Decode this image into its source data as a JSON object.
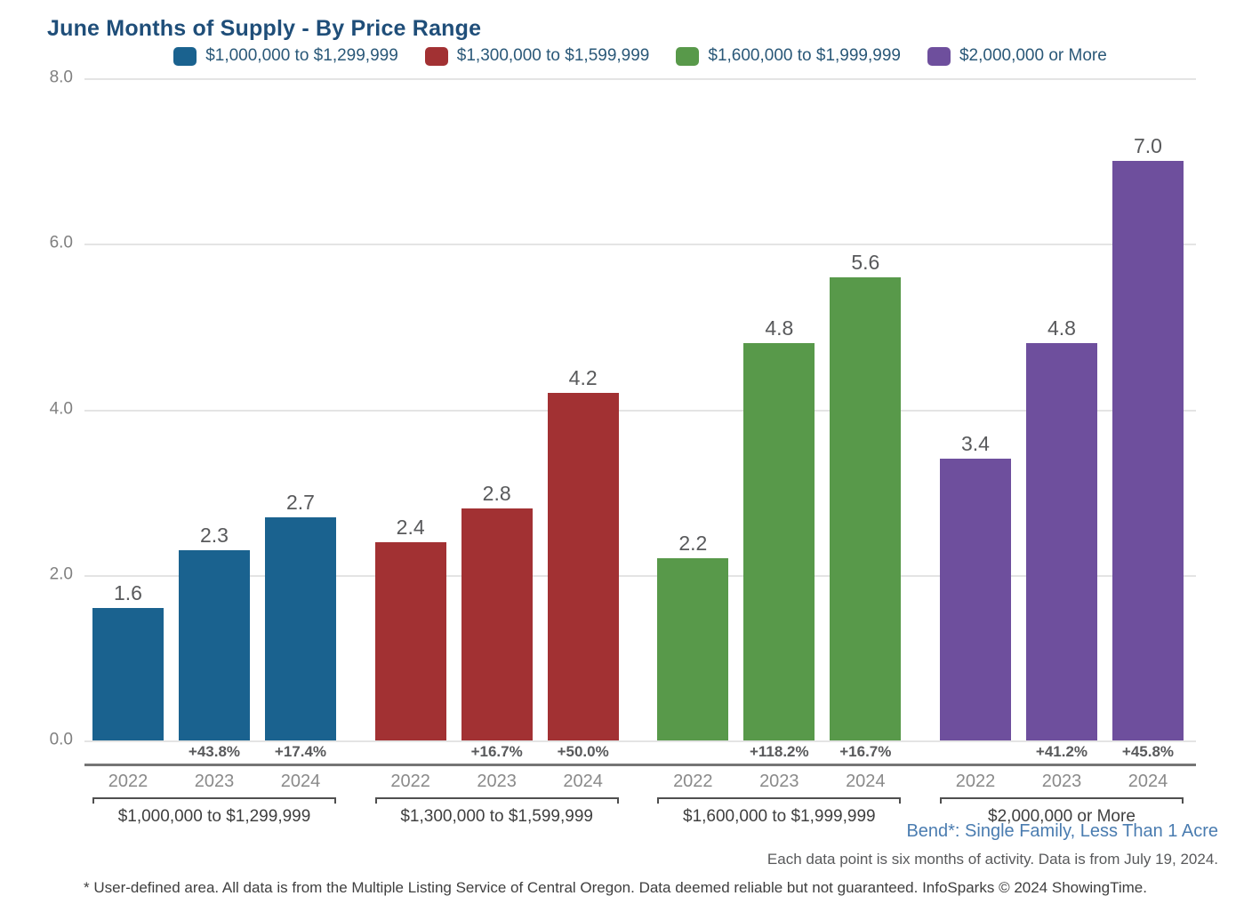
{
  "title": "June Months of Supply - By Price Range",
  "legend": [
    {
      "label": "$1,000,000 to $1,299,999",
      "color": "#1A628F"
    },
    {
      "label": "$1,300,000 to $1,599,999",
      "color": "#A23133"
    },
    {
      "label": "$1,600,000 to $1,999,999",
      "color": "#58994A"
    },
    {
      "label": "$2,000,000 or More",
      "color": "#6E4F9D"
    }
  ],
  "chart_data": {
    "type": "bar",
    "title": "June Months of Supply - By Price Range",
    "xlabel": "",
    "ylabel": "",
    "ylim": [
      0,
      8
    ],
    "yticks": [
      "0.0",
      "2.0",
      "4.0",
      "6.0",
      "8.0"
    ],
    "grid": true,
    "legend_position": "top",
    "categories": [
      "2022",
      "2023",
      "2024"
    ],
    "groups": [
      {
        "label": "$1,000,000 to $1,299,999",
        "color": "#1A628F",
        "values": [
          1.6,
          2.3,
          2.7
        ],
        "value_labels": [
          "1.6",
          "2.3",
          "2.7"
        ],
        "pct_change": [
          "",
          "+43.8%",
          "+17.4%"
        ]
      },
      {
        "label": "$1,300,000 to $1,599,999",
        "color": "#A23133",
        "values": [
          2.4,
          2.8,
          4.2
        ],
        "value_labels": [
          "2.4",
          "2.8",
          "4.2"
        ],
        "pct_change": [
          "",
          "+16.7%",
          "+50.0%"
        ]
      },
      {
        "label": "$1,600,000 to $1,999,999",
        "color": "#58994A",
        "values": [
          2.2,
          4.8,
          5.6
        ],
        "value_labels": [
          "2.2",
          "4.8",
          "5.6"
        ],
        "pct_change": [
          "",
          "+118.2%",
          "+16.7%"
        ]
      },
      {
        "label": "$2,000,000 or More",
        "color": "#6E4F9D",
        "values": [
          3.4,
          4.8,
          7.0
        ],
        "value_labels": [
          "3.4",
          "4.8",
          "7.0"
        ],
        "pct_change": [
          "",
          "+41.2%",
          "+45.8%"
        ]
      }
    ]
  },
  "footer": {
    "area_label": "Bend*: Single Family, Less Than 1 Acre",
    "data_note": "Each data point is six months of activity. Data is from July 19, 2024.",
    "disclaimer": "* User-defined area. All data is from the Multiple Listing Service of Central Oregon. Data deemed reliable but not guaranteed. InfoSparks © 2024 ShowingTime."
  },
  "colors": {
    "title_text": "#1F4E79",
    "legend_text": "#2A5878",
    "axis_tick_text": "#808080",
    "value_label_text": "#58595B",
    "pct_label_text": "#58595B",
    "year_label_text": "#8A8A8A",
    "group_label_text": "#3F3F3F",
    "area_label_text": "#4A7CB0",
    "gridline": "#E4E4E4",
    "divider_line": "#757575"
  }
}
